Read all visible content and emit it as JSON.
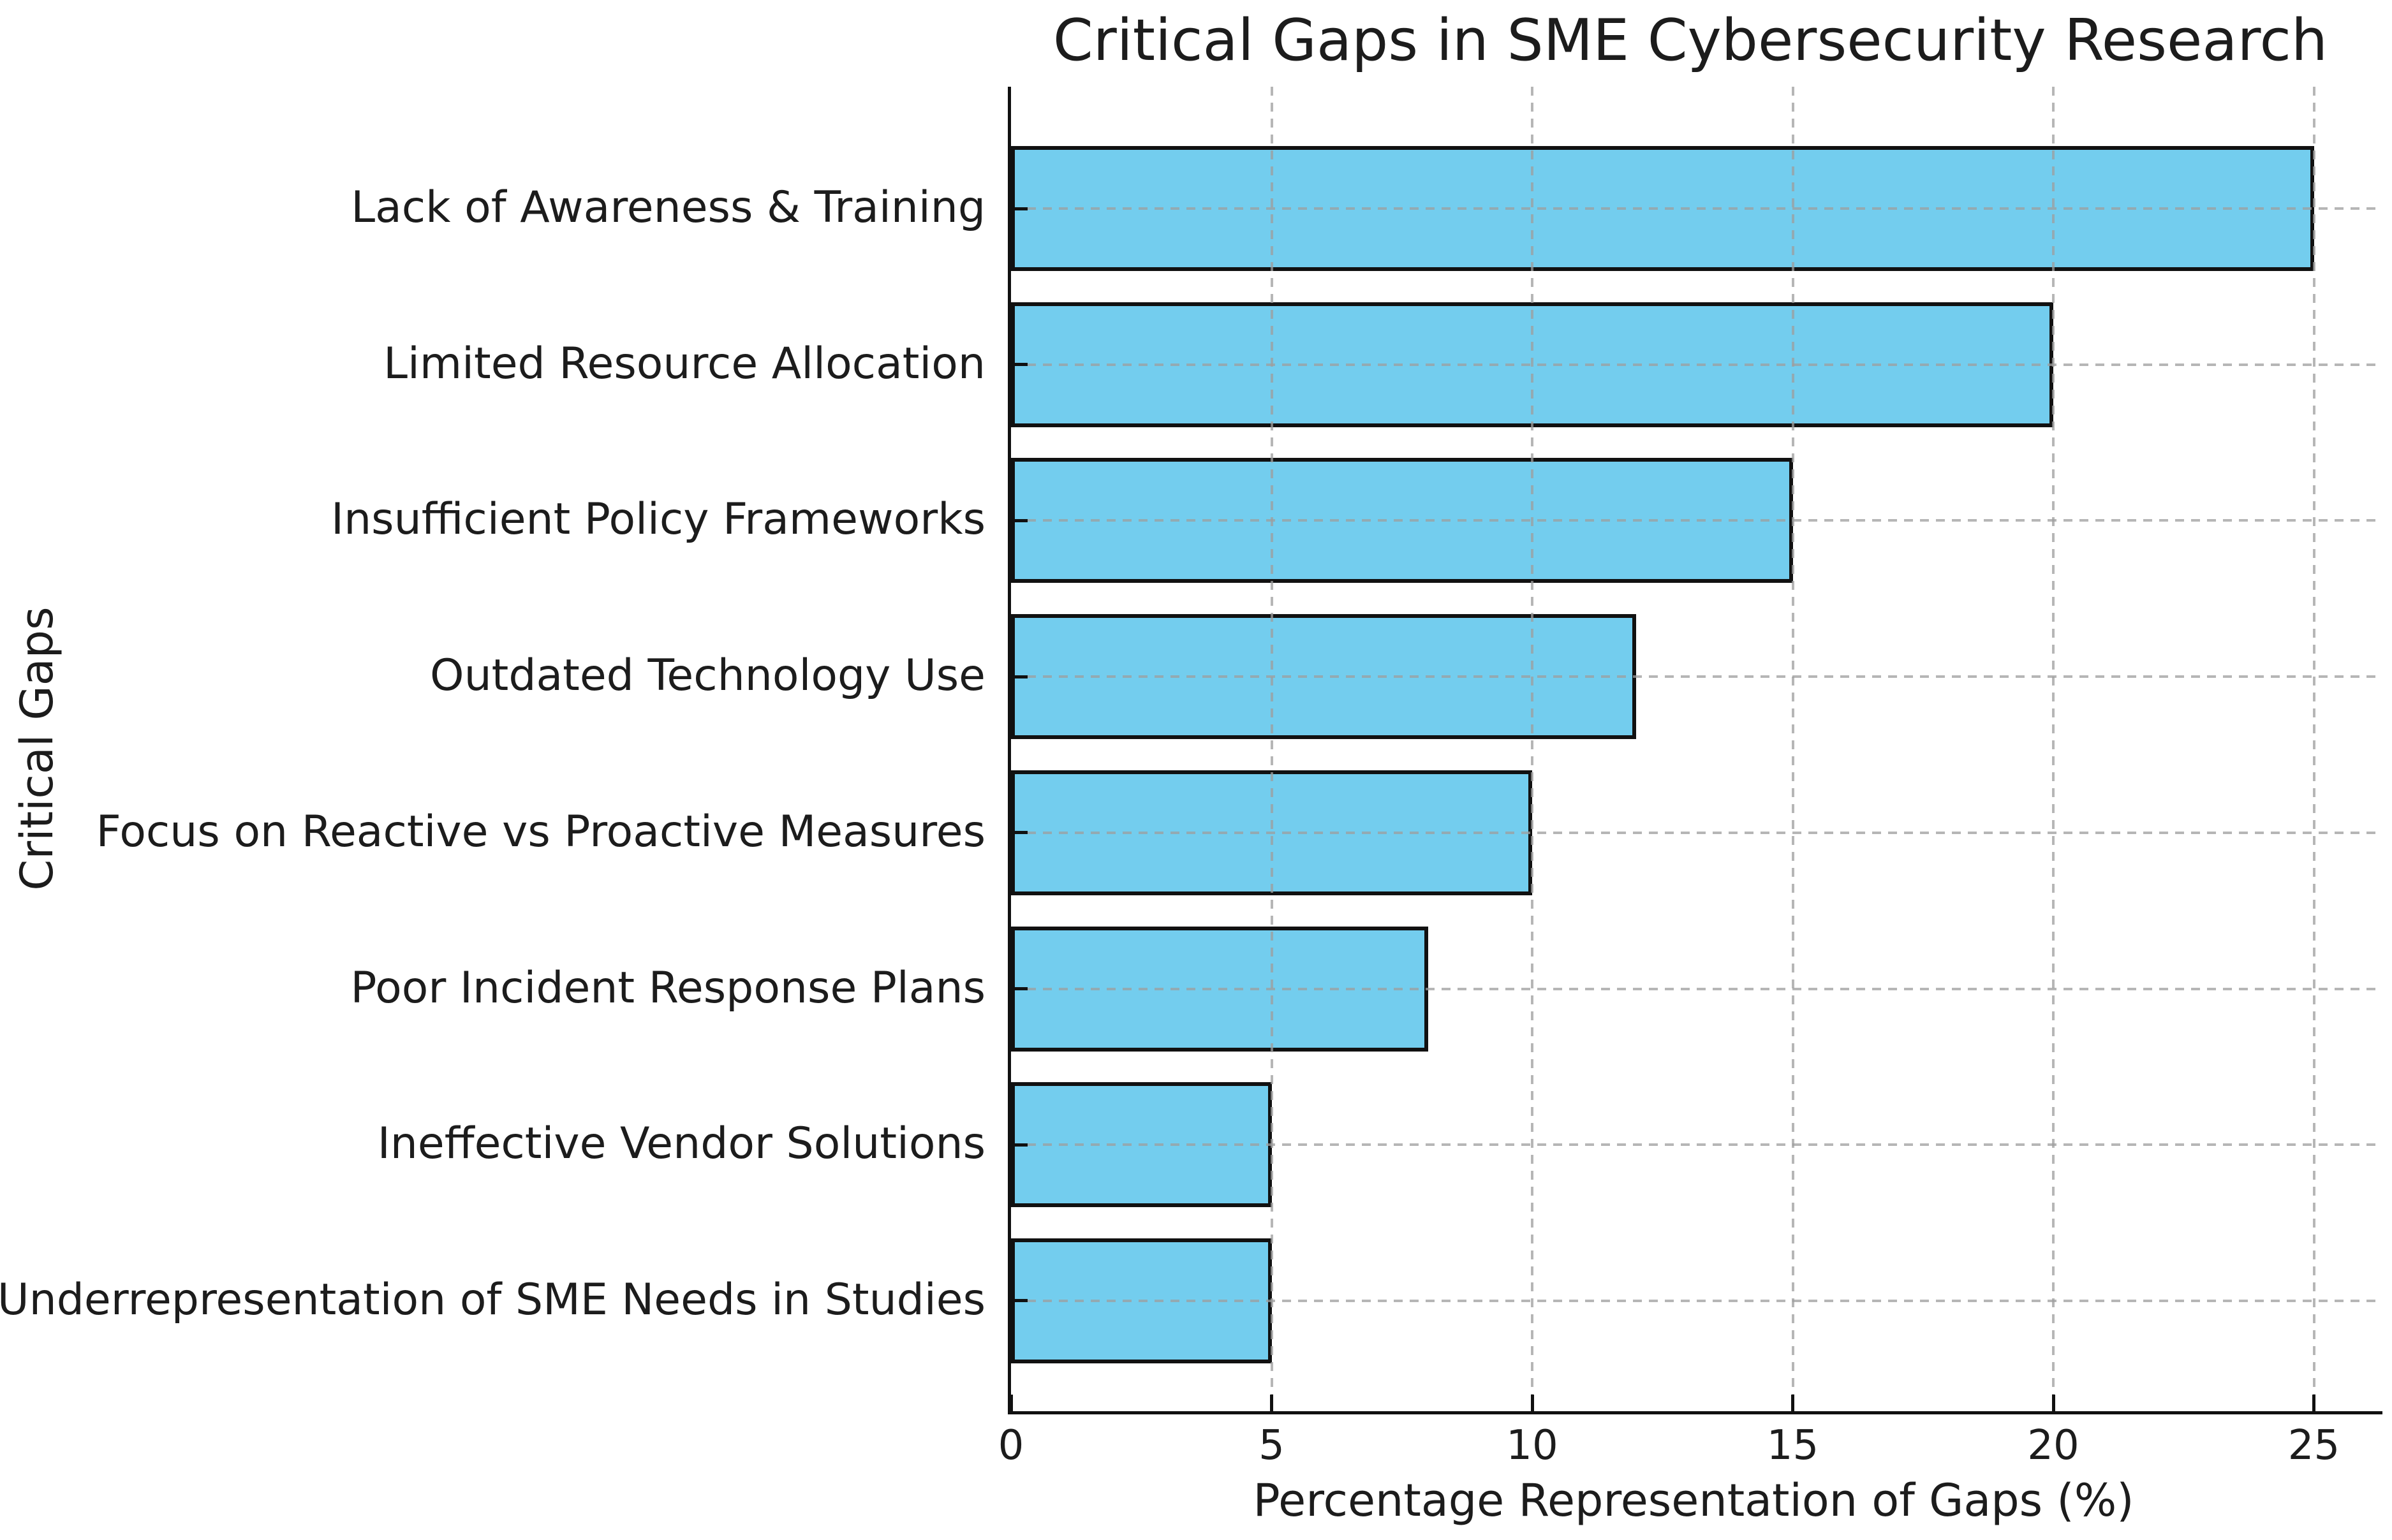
{
  "chart_data": {
    "type": "bar",
    "orientation": "horizontal",
    "title": "Critical Gaps in SME Cybersecurity Research",
    "xlabel": "Percentage Representation of Gaps (%)",
    "ylabel": "Critical Gaps",
    "categories": [
      "Lack of Awareness & Training",
      "Limited Resource Allocation",
      "Insufficient Policy Frameworks",
      "Outdated Technology Use",
      "Focus on Reactive vs Proactive Measures",
      "Poor Incident Response Plans",
      "Ineffective Vendor Solutions",
      "Underrepresentation of SME Needs in Studies"
    ],
    "values": [
      25,
      20,
      15,
      12,
      10,
      8,
      5,
      5
    ],
    "xticks": [
      0,
      5,
      10,
      15,
      20,
      25
    ],
    "xlim": [
      0,
      26.3
    ],
    "grid": true,
    "grid_style": "dashed",
    "grid_over_bars": true,
    "tick_direction": "in",
    "legend_position": "none",
    "bar_color": "#73CDEE",
    "bar_edge_color": "#111111",
    "grid_color": "#9e9e9e",
    "text_color": "#1c1c1c",
    "background_color": "#ffffff"
  }
}
